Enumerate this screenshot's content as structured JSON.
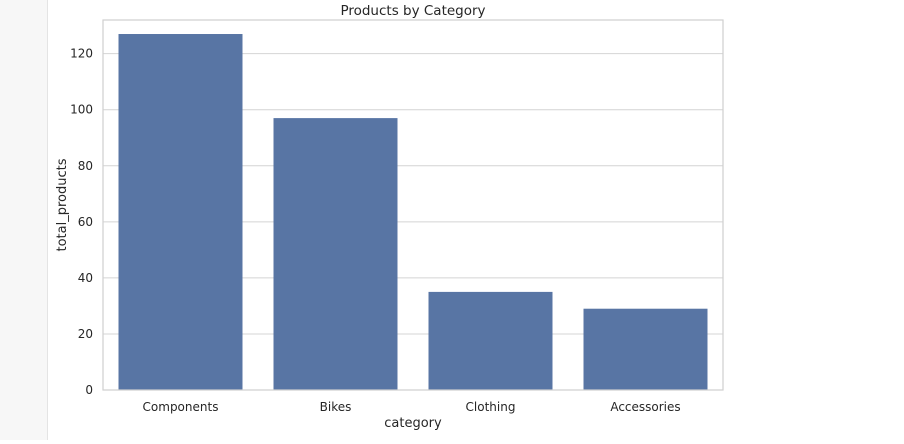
{
  "chart_data": {
    "type": "bar",
    "title": "Products by Category",
    "xlabel": "category",
    "ylabel": "total_products",
    "categories": [
      "Components",
      "Bikes",
      "Clothing",
      "Accessories"
    ],
    "values": [
      127,
      97,
      35,
      29
    ],
    "ylim": [
      0,
      132
    ],
    "yticks": [
      0,
      20,
      40,
      60,
      80,
      100,
      120
    ],
    "grid": true,
    "bar_color": "#5875a4"
  }
}
